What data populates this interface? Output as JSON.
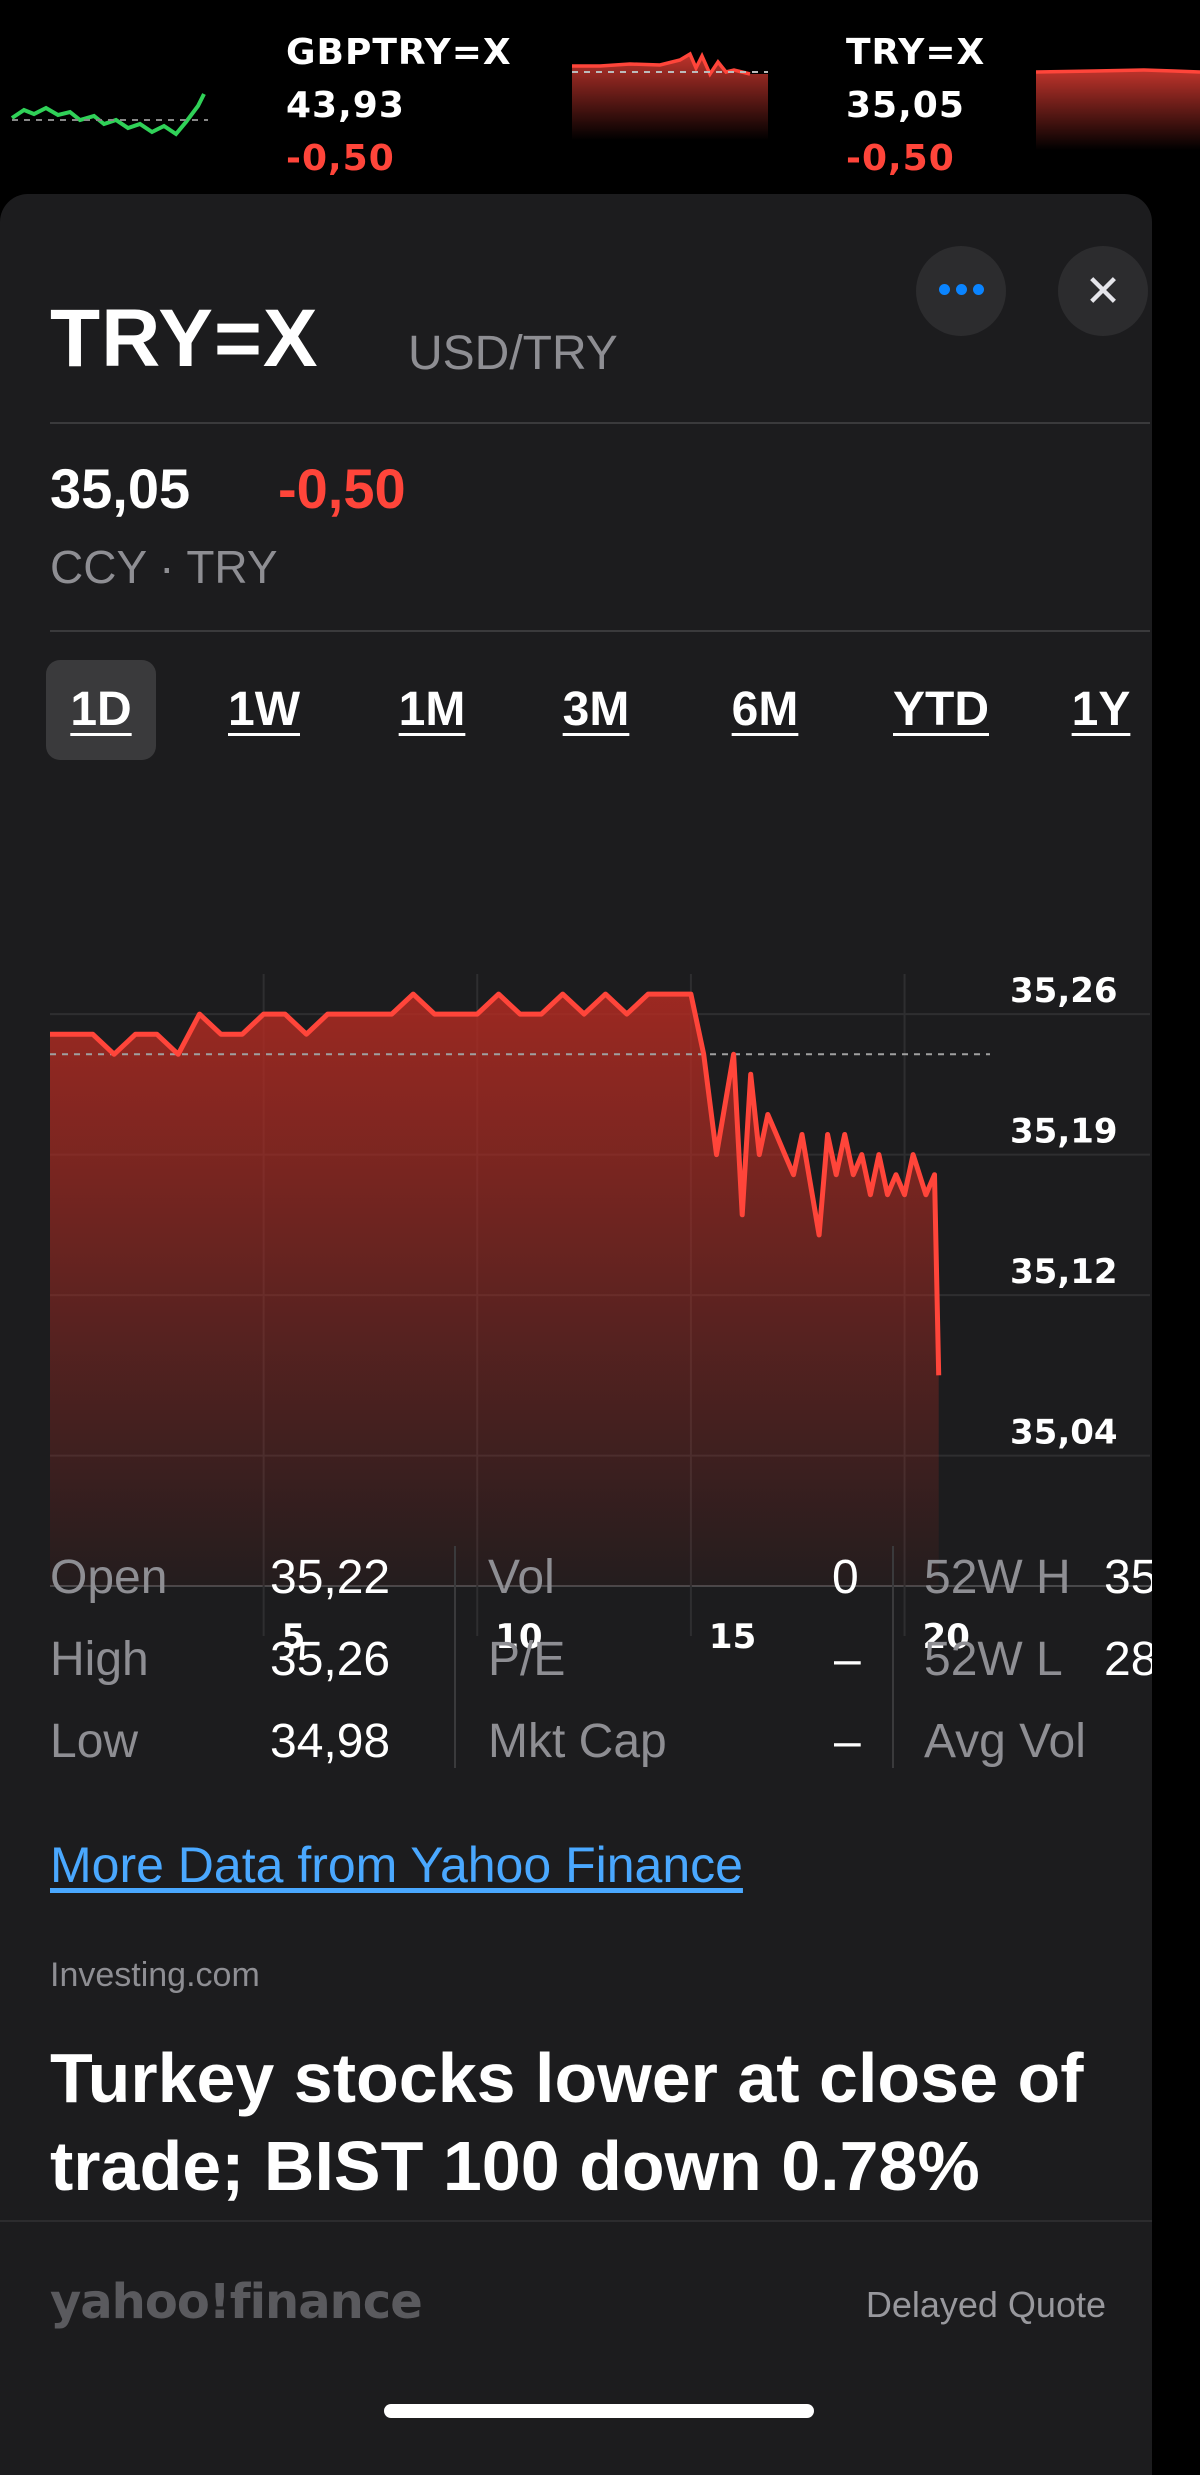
{
  "ticker_strip": [
    {
      "symbol": "GBPTRY=X",
      "price": "43,93",
      "change": "-0,50"
    },
    {
      "symbol": "TRY=X",
      "price": "35,05",
      "change": "-0,50"
    }
  ],
  "header": {
    "title": "TRY=X",
    "subtitle": "USD/TRY",
    "more_icon": "ellipsis-icon",
    "close_icon": "close-icon",
    "close_glyph": "✕"
  },
  "quote": {
    "price": "35,05",
    "change": "-0,50",
    "exchange": "CCY · TRY"
  },
  "ranges": {
    "d1": "1D",
    "w1": "1W",
    "m1": "1M",
    "m3": "3M",
    "m6": "6M",
    "ytd": "YTD",
    "y1": "1Y",
    "selected": "1D"
  },
  "colors": {
    "down": "#ff453a",
    "up": "#30d158",
    "link": "#4aa8ff"
  },
  "chart_data": {
    "type": "area",
    "title": "TRY=X 1D",
    "x_ticks": [
      "5",
      "10",
      "15",
      "20"
    ],
    "y_ticks": [
      "35,26",
      "35,19",
      "35,12",
      "35,04"
    ],
    "y_tick_values": [
      35.26,
      35.19,
      35.12,
      35.04
    ],
    "ylim": [
      34.98,
      35.28
    ],
    "previous_close": 35.24,
    "x": [
      0,
      1,
      1.5,
      2,
      2.5,
      3,
      3.5,
      4,
      4.5,
      5,
      5.5,
      6,
      6.5,
      7,
      7.5,
      8,
      8.5,
      9,
      9.5,
      10,
      10.5,
      11,
      11.5,
      12,
      12.5,
      13,
      13.5,
      14,
      14.5,
      15,
      15.3,
      15.6,
      16,
      16.2,
      16.4,
      16.6,
      16.8,
      17,
      17.2,
      17.4,
      17.6,
      18,
      18.2,
      18.4,
      18.6,
      18.8,
      19,
      19.2,
      19.4,
      19.6,
      19.8,
      20,
      20.2,
      20.5,
      20.7,
      20.8
    ],
    "y": [
      35.25,
      35.25,
      35.24,
      35.25,
      35.25,
      35.24,
      35.26,
      35.25,
      35.25,
      35.26,
      35.26,
      35.25,
      35.26,
      35.26,
      35.26,
      35.26,
      35.27,
      35.26,
      35.26,
      35.26,
      35.27,
      35.26,
      35.26,
      35.27,
      35.26,
      35.27,
      35.26,
      35.27,
      35.27,
      35.27,
      35.24,
      35.19,
      35.24,
      35.16,
      35.23,
      35.19,
      35.21,
      35.2,
      35.19,
      35.18,
      35.2,
      35.15,
      35.2,
      35.18,
      35.2,
      35.18,
      35.19,
      35.17,
      35.19,
      35.17,
      35.18,
      35.17,
      35.19,
      35.17,
      35.18,
      35.08
    ],
    "series_color": "#ff453a"
  },
  "stats": {
    "open_label": "Open",
    "open_value": "35,22",
    "high_label": "High",
    "high_value": "35,26",
    "low_label": "Low",
    "low_value": "34,98",
    "vol_label": "Vol",
    "vol_value": "0",
    "pe_label": "P/E",
    "pe_value": "–",
    "mktcap_label": "Mkt Cap",
    "mktcap_value": "–",
    "w52h_label": "52W H",
    "w52h_value": "35",
    "w52l_label": "52W L",
    "w52l_value": "28",
    "avgvol_label": "Avg Vol"
  },
  "links": {
    "more_data": "More Data from Yahoo Finance"
  },
  "news": {
    "source": "Investing.com",
    "headline": "Turkey stocks lower at close of trade; BIST 100 down 0.78%"
  },
  "footer": {
    "logo": "yahoo!finance",
    "delayed": "Delayed Quote"
  }
}
